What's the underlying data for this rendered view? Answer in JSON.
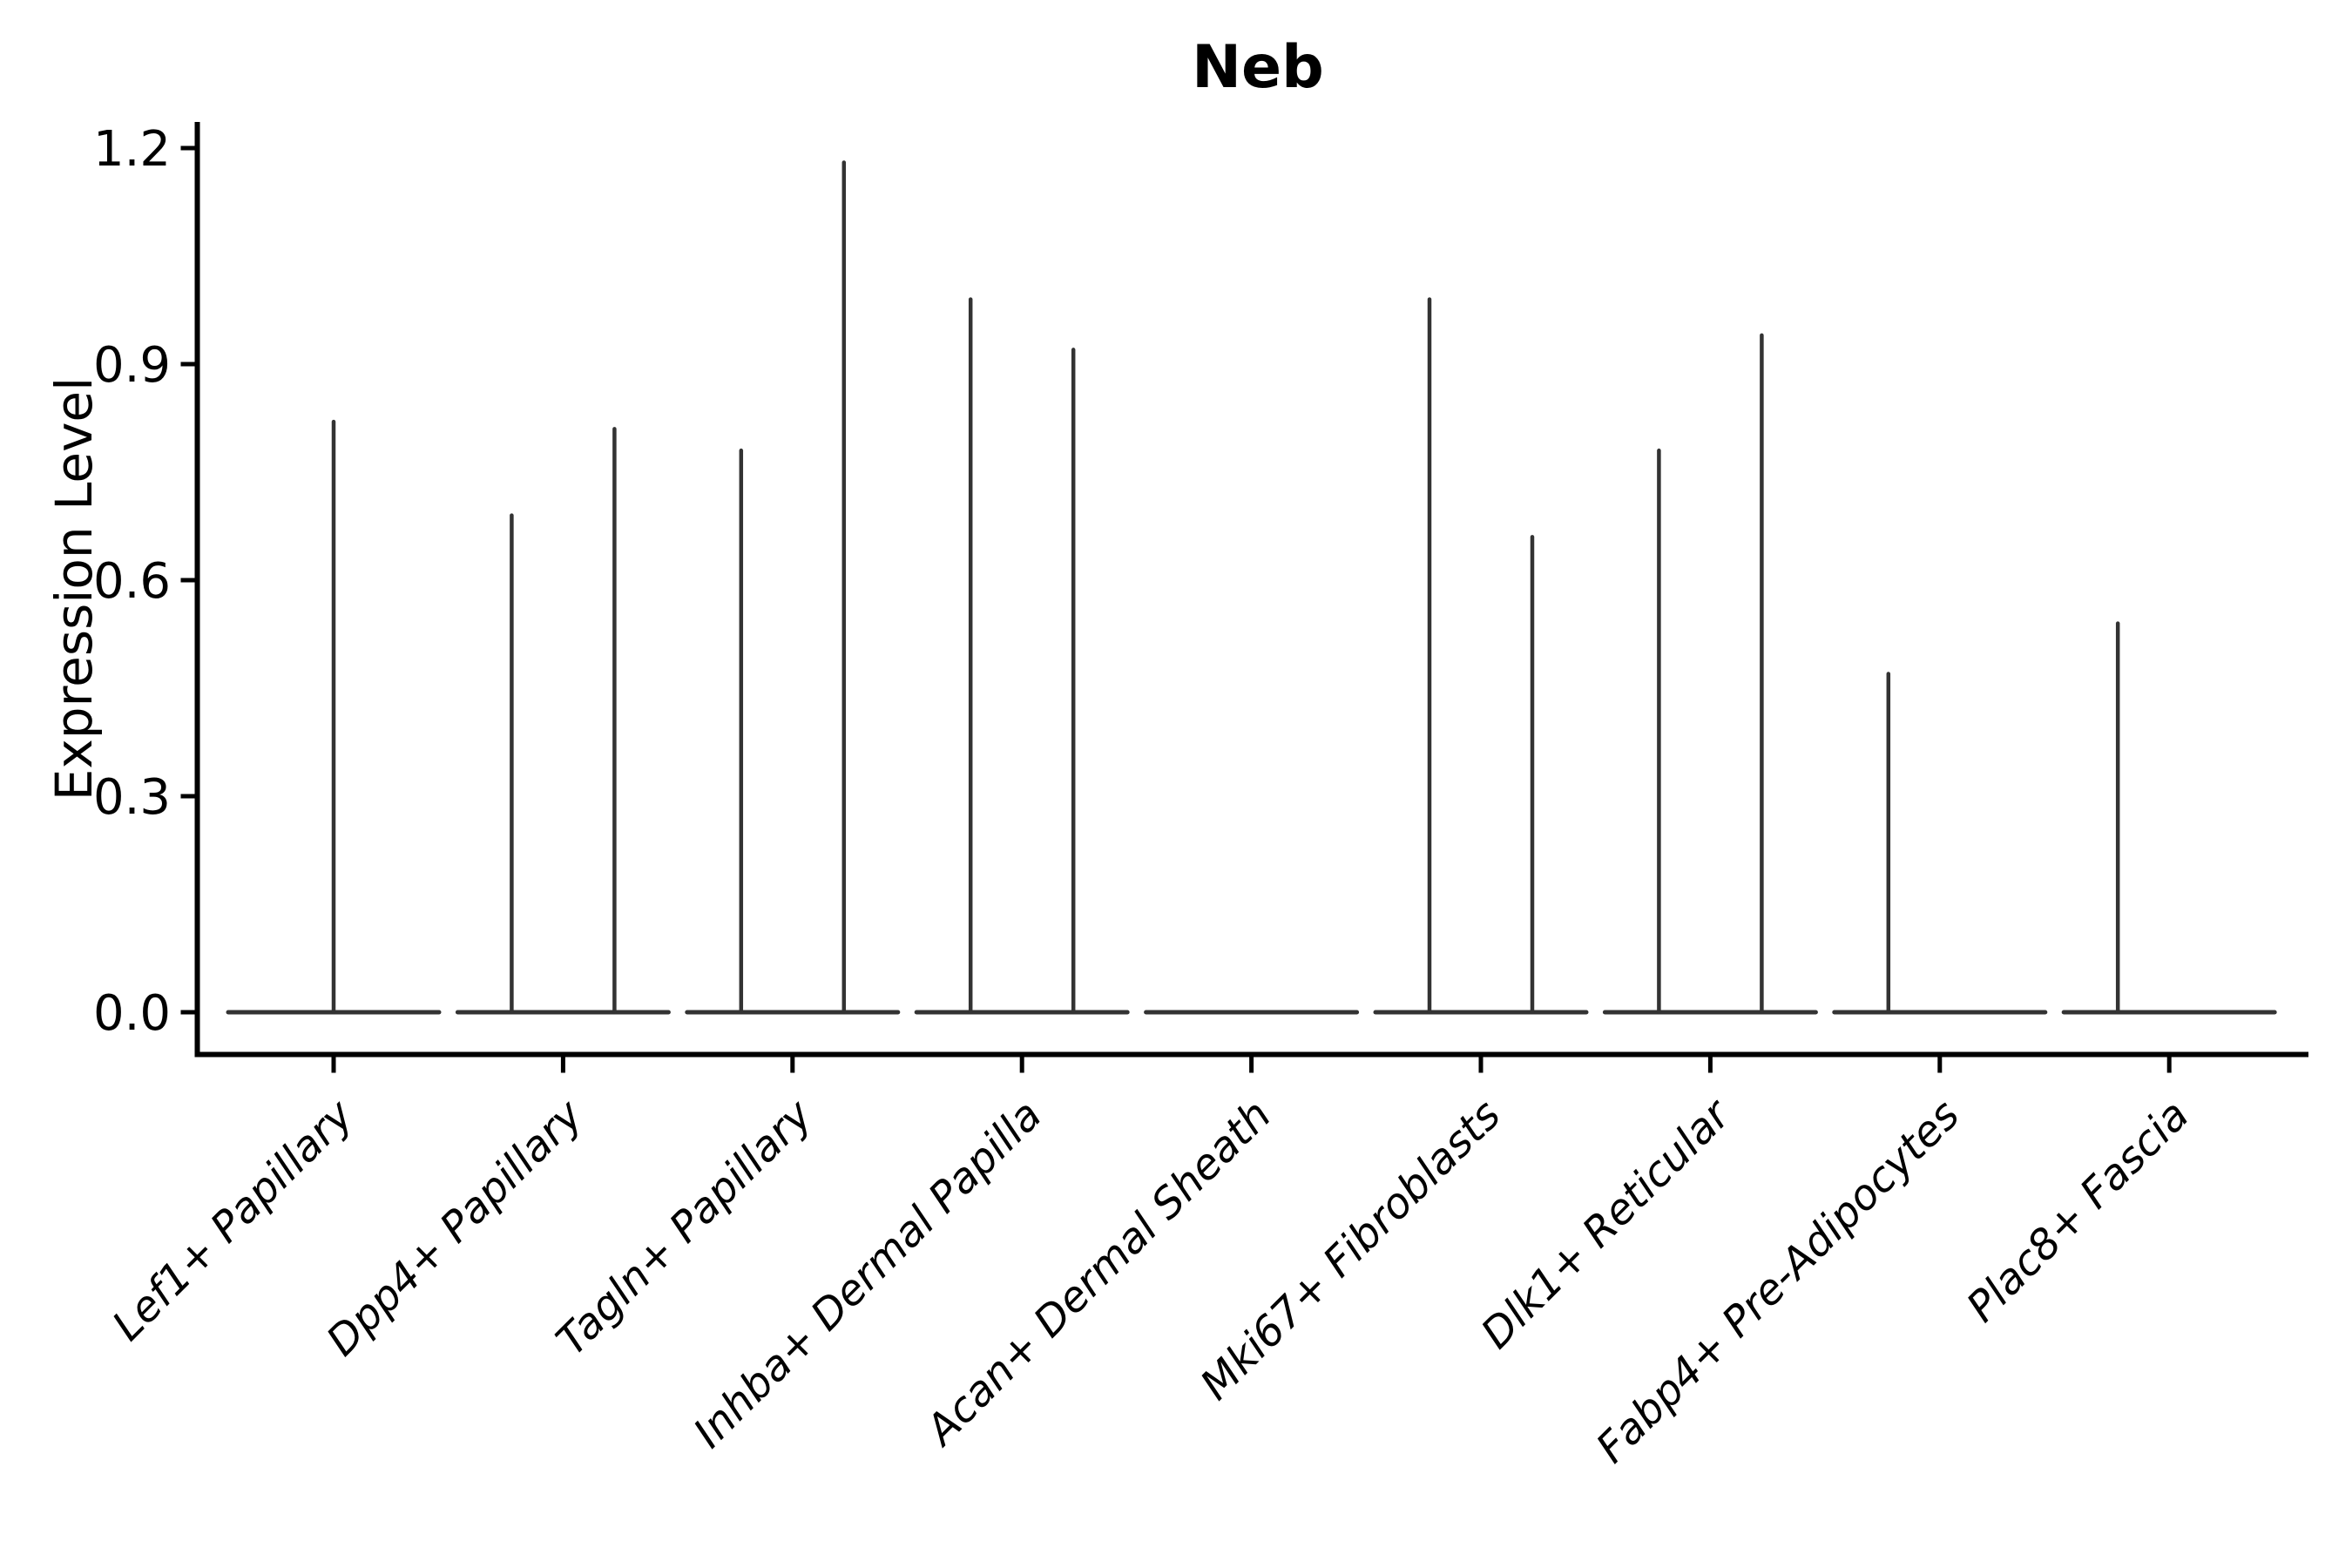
{
  "page": {
    "background": "#ffffff"
  },
  "chart_data": {
    "type": "violin",
    "title": "Neb",
    "ylabel": "Expression Level",
    "xlabel": "",
    "grid": false,
    "legend": null,
    "colors": {
      "violin_line": "#333333",
      "axis": "#000000",
      "background": "#ffffff"
    },
    "yticks": {
      "values": [
        0.0,
        0.3,
        0.6,
        0.9,
        1.2
      ],
      "labels": [
        "0.0",
        "0.3",
        "0.6",
        "0.9",
        "1.2"
      ]
    },
    "ylim": [
      -0.06,
      1.24
    ],
    "categories": [
      "Lef1+ Papillary",
      "Dpp4+ Papillary",
      "Tagln+ Papillary",
      "Inhba+ Dermal Papilla",
      "Acan+ Dermal Sheath",
      "Mki67+ Fibroblasts",
      "Dlk1+ Reticular",
      "Fabp4+ Pre-Adipocytes",
      "Plac8+ Fascia"
    ],
    "violins": [
      {
        "category": "Lef1+ Papillary",
        "baseline_value": 0.0,
        "spikes": [
          {
            "pos": "center",
            "max": 0.82
          }
        ]
      },
      {
        "category": "Dpp4+ Papillary",
        "baseline_value": 0.0,
        "spikes": [
          {
            "pos": "left",
            "max": 0.69
          },
          {
            "pos": "right",
            "max": 0.81
          }
        ]
      },
      {
        "category": "Tagln+ Papillary",
        "baseline_value": 0.0,
        "spikes": [
          {
            "pos": "left",
            "max": 0.78
          },
          {
            "pos": "right",
            "max": 1.18
          }
        ]
      },
      {
        "category": "Inhba+ Dermal Papilla",
        "baseline_value": 0.0,
        "spikes": [
          {
            "pos": "left",
            "max": 0.99
          },
          {
            "pos": "right",
            "max": 0.92
          }
        ]
      },
      {
        "category": "Acan+ Dermal Sheath",
        "baseline_value": 0.0,
        "spikes": []
      },
      {
        "category": "Mki67+ Fibroblasts",
        "baseline_value": 0.0,
        "spikes": [
          {
            "pos": "left",
            "max": 0.99
          },
          {
            "pos": "right",
            "max": 0.66
          }
        ]
      },
      {
        "category": "Dlk1+ Reticular",
        "baseline_value": 0.0,
        "spikes": [
          {
            "pos": "left",
            "max": 0.78
          },
          {
            "pos": "right",
            "max": 0.94
          }
        ]
      },
      {
        "category": "Fabp4+ Pre-Adipocytes",
        "baseline_value": 0.0,
        "spikes": [
          {
            "pos": "left",
            "max": 0.47
          }
        ]
      },
      {
        "category": "Plac8+ Fascia",
        "baseline_value": 0.0,
        "spikes": [
          {
            "pos": "left",
            "max": 0.54
          }
        ]
      }
    ]
  }
}
